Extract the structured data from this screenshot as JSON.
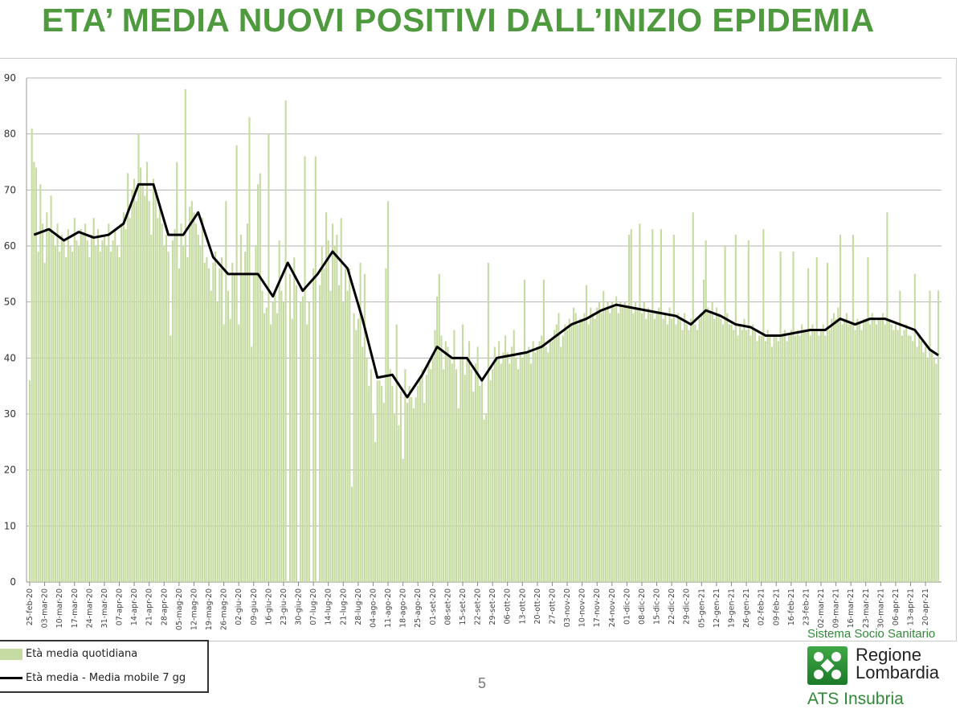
{
  "title": "ETA’ MEDIA NUOVI POSITIVI DALL’INIZIO EPIDEMIA",
  "page_number": "5",
  "logo": {
    "system": "Sistema Socio Sanitario",
    "region_line1": "Regione",
    "region_line2": "Lombardia",
    "agency": "ATS Insubria"
  },
  "colors": {
    "title": "#4f9a3e",
    "bars": "#c6dba2",
    "line": "#000000",
    "grid": "#b0b0b0"
  },
  "chart_data": {
    "type": "bar+line",
    "ylim": [
      0,
      90
    ],
    "yticks": [
      0,
      10,
      20,
      30,
      40,
      50,
      60,
      70,
      80,
      90
    ],
    "grid": true,
    "legend_position": "bottom-left",
    "legend": [
      "Età media quotidiana",
      "Età media - Media mobile 7 gg"
    ],
    "x_start": "25-feb-20",
    "x_tick_labels": [
      "25-feb-20",
      "03-mar-20",
      "10-mar-20",
      "17-mar-20",
      "24-mar-20",
      "31-mar-20",
      "07-apr-20",
      "14-apr-20",
      "21-apr-20",
      "28-apr-20",
      "05-mag-20",
      "12-mag-20",
      "19-mag-20",
      "26-mag-20",
      "02-giu-20",
      "09-giu-20",
      "16-giu-20",
      "23-giu-20",
      "30-giu-20",
      "07-lug-20",
      "14-lug-20",
      "21-lug-20",
      "28-lug-20",
      "04-ago-20",
      "11-ago-20",
      "18-ago-20",
      "25-ago-20",
      "01-set-20",
      "08-set-20",
      "15-set-20",
      "22-set-20",
      "29-set-20",
      "06-ott-20",
      "13-ott-20",
      "20-ott-20",
      "27-ott-20",
      "03-nov-20",
      "10-nov-20",
      "17-nov-20",
      "24-nov-20",
      "01-dic-20",
      "08-dic-20",
      "15-dic-20",
      "22-dic-20",
      "29-dic-20",
      "05-gen-21",
      "12-gen-21",
      "19-gen-21",
      "26-gen-21",
      "02-feb-21",
      "09-feb-21",
      "16-feb-21",
      "23-feb-21",
      "02-mar-21",
      "09-mar-21",
      "16-mar-21",
      "23-mar-21",
      "30-mar-21",
      "06-apr-21",
      "13-apr-21",
      "20-apr-21"
    ],
    "series": [
      {
        "name": "Età media quotidiana",
        "type": "bar",
        "frequency": "daily",
        "values": [
          36,
          81,
          75,
          74,
          59,
          71,
          64,
          57,
          66,
          63,
          69,
          62,
          60,
          64,
          59,
          62,
          61,
          58,
          63,
          60,
          59,
          65,
          61,
          60,
          63,
          62,
          64,
          61,
          58,
          62,
          65,
          60,
          63,
          59,
          61,
          62,
          60,
          64,
          59,
          61,
          63,
          60,
          58,
          64,
          66,
          63,
          73,
          65,
          70,
          72,
          68,
          80,
          74,
          71,
          69,
          75,
          68,
          62,
          72,
          70,
          65,
          67,
          64,
          60,
          62,
          59,
          44,
          61,
          63,
          75,
          56,
          64,
          60,
          88,
          58,
          67,
          68,
          66,
          64,
          62,
          60,
          65,
          57,
          58,
          56,
          52,
          57,
          59,
          50,
          56,
          58,
          46,
          68,
          52,
          47,
          57,
          55,
          78,
          46,
          62,
          55,
          59,
          64,
          83,
          42,
          55,
          60,
          71,
          73,
          52,
          48,
          49,
          80,
          46,
          50,
          52,
          48,
          61,
          52,
          50,
          86,
          0,
          55,
          47,
          58,
          53,
          0,
          50,
          51,
          76,
          46,
          50,
          0,
          56,
          76,
          0,
          53,
          60,
          56,
          66,
          61,
          52,
          64,
          60,
          62,
          53,
          65,
          50,
          56,
          52,
          56,
          17,
          48,
          45,
          47,
          57,
          42,
          55,
          40,
          35,
          38,
          30,
          25,
          36,
          36,
          35,
          32,
          56,
          68,
          38,
          35,
          30,
          46,
          28,
          34,
          22,
          38,
          32,
          35,
          33,
          31,
          33,
          35,
          36,
          38,
          32,
          37,
          39,
          38,
          40,
          45,
          51,
          55,
          44,
          38,
          43,
          42,
          40,
          39,
          45,
          38,
          31,
          40,
          46,
          37,
          40,
          43,
          38,
          34,
          39,
          42,
          35,
          36,
          29,
          30,
          57,
          36,
          38,
          42,
          40,
          43,
          39,
          41,
          44,
          41,
          39,
          42,
          45,
          40,
          38,
          41,
          40,
          54,
          41,
          42,
          39,
          43,
          41,
          42,
          43,
          44,
          54,
          42,
          41,
          43,
          43,
          45,
          46,
          48,
          42,
          44,
          46,
          45,
          47,
          46,
          49,
          48,
          46,
          47,
          47,
          48,
          53,
          46,
          49,
          48,
          47,
          49,
          50,
          48,
          52,
          49,
          50,
          48,
          50,
          49,
          51,
          48,
          50,
          49,
          50,
          49,
          62,
          63,
          48,
          50,
          49,
          64,
          48,
          50,
          47,
          49,
          48,
          63,
          47,
          48,
          49,
          63,
          47,
          48,
          46,
          49,
          47,
          62,
          46,
          48,
          47,
          45,
          48,
          46,
          45,
          47,
          66,
          46,
          45,
          47,
          48,
          54,
          61,
          49,
          48,
          50,
          47,
          49,
          48,
          47,
          46,
          60,
          48,
          46,
          46,
          45,
          62,
          44,
          46,
          45,
          47,
          45,
          61,
          44,
          46,
          45,
          43,
          44,
          44,
          63,
          43,
          45,
          44,
          42,
          44,
          44,
          43,
          59,
          44,
          45,
          43,
          44,
          45,
          59,
          44,
          45,
          44,
          46,
          45,
          45,
          56,
          44,
          46,
          45,
          58,
          44,
          45,
          46,
          44,
          57,
          45,
          47,
          48,
          47,
          49,
          62,
          46,
          47,
          48,
          46,
          46,
          62,
          45,
          47,
          46,
          45,
          47,
          47,
          58,
          46,
          48,
          47,
          46,
          47,
          47,
          48,
          46,
          66,
          47,
          46,
          45,
          46,
          45,
          52,
          44,
          45,
          46,
          44,
          44,
          43,
          55,
          42,
          44,
          43,
          41,
          42,
          40,
          52,
          41,
          40,
          39,
          52
        ]
      },
      {
        "name": "Età media - Media mobile 7 gg",
        "type": "line",
        "frequency": "weekly",
        "values": [
          62,
          63,
          61,
          62.5,
          61.5,
          62,
          64,
          71,
          71,
          62,
          62,
          66,
          58,
          55,
          55,
          55,
          51,
          57,
          52,
          55,
          59,
          56,
          47,
          36.5,
          37,
          33,
          37,
          42,
          40,
          40,
          36,
          40,
          40.5,
          41,
          42,
          44,
          46,
          47,
          48.5,
          49.5,
          49,
          48.5,
          48,
          47.5,
          46,
          48.5,
          47.5,
          46,
          45.5,
          44,
          44,
          44.5,
          45,
          45,
          47,
          46,
          47,
          47,
          46,
          45,
          41.5,
          40.5
        ]
      }
    ]
  }
}
